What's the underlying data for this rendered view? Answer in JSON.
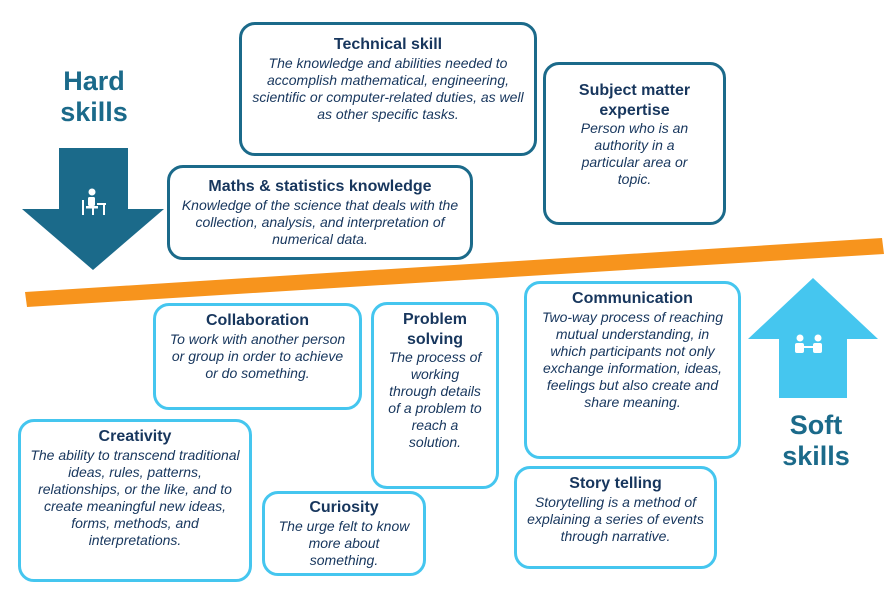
{
  "hard_label": [
    "Hard",
    "skills"
  ],
  "soft_label": [
    "Soft",
    "skills"
  ],
  "colors": {
    "hard": "#1b6a8a",
    "soft": "#45c6ef",
    "divider": "#f7941d",
    "text": "#17365d"
  },
  "hard_skills": {
    "technical": {
      "title": "Technical skill",
      "desc": "The knowledge and abilities needed to accomplish mathematical, engineering, scientific or computer-related duties, as well as other specific tasks."
    },
    "subject": {
      "title": "Subject matter expertise",
      "desc": "Person who is an authority in a particular area or topic."
    },
    "maths": {
      "title": "Maths & statistics knowledge",
      "desc": "Knowledge of the science that deals with the collection, analysis, and interpretation of numerical data."
    }
  },
  "soft_skills": {
    "collaboration": {
      "title": "Collaboration",
      "desc": "To work with another person or group in order to achieve or do something."
    },
    "problem": {
      "title": "Problem solving",
      "desc": "The process of working through details of a problem to reach a solution."
    },
    "communication": {
      "title": "Communication",
      "desc": "Two-way process of reaching mutual understanding, in which participants not only exchange information, ideas, feelings but also create and share meaning."
    },
    "creativity": {
      "title": "Creativity",
      "desc": "The ability to transcend traditional ideas, rules, patterns, relationships, or the like, and to create meaningful new ideas, forms, methods, and interpretations."
    },
    "curiosity": {
      "title": "Curiosity",
      "desc": "The urge felt to know more about something."
    },
    "story": {
      "title": "Story telling",
      "desc": "Storytelling is a method of explaining a series of events through narrative."
    }
  }
}
